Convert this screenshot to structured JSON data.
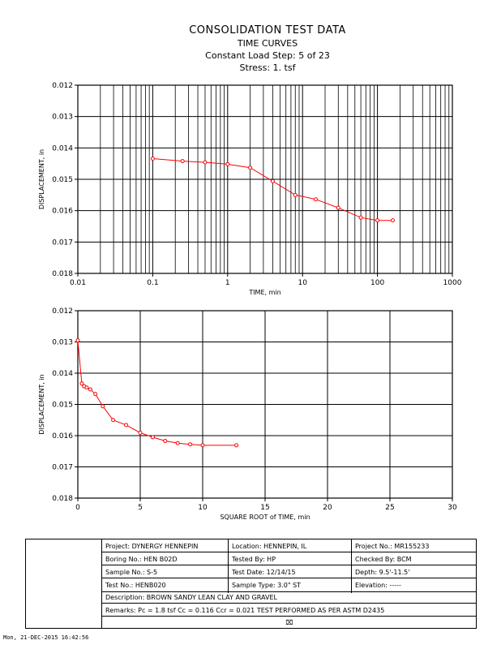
{
  "header": {
    "title": "CONSOLIDATION TEST DATA",
    "subtitle": "TIME CURVES",
    "load_step": "Constant Load Step: 5 of 23",
    "stress": "Stress: 1. tsf"
  },
  "chart_data": [
    {
      "type": "line",
      "name": "displacement-vs-log-time",
      "xlabel": "TIME, min",
      "ylabel": "DISPLACEMENT, in",
      "xscale": "log",
      "xlim": [
        0.01,
        1000
      ],
      "ylim": [
        0.012,
        0.018
      ],
      "y_inverted": true,
      "grid": true,
      "xticks": [
        0.01,
        0.1,
        1,
        10,
        100,
        1000
      ],
      "xtick_labels": [
        "0.01",
        "0.1",
        "1",
        "10",
        "100",
        "1000"
      ],
      "yticks": [
        0.012,
        0.013,
        0.014,
        0.015,
        0.016,
        0.017,
        0.018
      ],
      "ytick_labels": [
        "0.012",
        "0.013",
        "0.014",
        "0.015",
        "0.016",
        "0.017",
        "0.018"
      ],
      "color": "#ff0000",
      "x": [
        0.1,
        0.25,
        0.5,
        1,
        2,
        4,
        8,
        15,
        30,
        60,
        100,
        160
      ],
      "y": [
        0.01434,
        0.01442,
        0.01446,
        0.01452,
        0.01463,
        0.01506,
        0.0155,
        0.01564,
        0.01591,
        0.01622,
        0.01631,
        0.01631
      ]
    },
    {
      "type": "line",
      "name": "displacement-vs-root-time",
      "xlabel": "SQUARE ROOT of TIME, min",
      "ylabel": "DISPLACEMENT, in",
      "xlim": [
        0,
        30
      ],
      "ylim": [
        0.012,
        0.018
      ],
      "y_inverted": true,
      "grid": true,
      "xticks": [
        0,
        5,
        10,
        15,
        20,
        25,
        30
      ],
      "xtick_labels": [
        "0",
        "5",
        "10",
        "15",
        "20",
        "25",
        "30"
      ],
      "yticks": [
        0.012,
        0.013,
        0.014,
        0.015,
        0.016,
        0.017,
        0.018
      ],
      "ytick_labels": [
        "0.012",
        "0.013",
        "0.014",
        "0.015",
        "0.016",
        "0.017",
        "0.018"
      ],
      "color": "#ff0000",
      "x": [
        0,
        0.32,
        0.5,
        0.71,
        1.0,
        1.41,
        2.0,
        2.83,
        3.87,
        5.0,
        6.0,
        7.0,
        8.0,
        9.0,
        10.0,
        12.7
      ],
      "y": [
        0.01295,
        0.01433,
        0.01442,
        0.01446,
        0.01452,
        0.01467,
        0.01506,
        0.0155,
        0.01566,
        0.01591,
        0.01605,
        0.01617,
        0.01624,
        0.01628,
        0.01631,
        0.01631
      ]
    }
  ],
  "info": {
    "project": "Project: DYNERGY HENNEPIN",
    "location": "Location: HENNEPIN, IL",
    "project_no": "Project No.: MR155233",
    "boring_no": "Boring No.: HEN B02D",
    "tested_by": "Tested By: HP",
    "checked_by": "Checked By: BCM",
    "sample_no": "Sample No.: S-5",
    "test_date": "Test Date: 12/14/15",
    "depth": "Depth: 9.5'-11.5'",
    "test_no": "Test No.: HENB020",
    "sample_type": "Sample Type: 3.0\" ST",
    "elevation": "Elevation: -----",
    "description": "Description: BROWN SANDY LEAN CLAY AND GRAVEL",
    "remarks": "Remarks: Pc = 1.8 tsf Cc = 0.116 Ccr = 0.021 TEST PERFORMED AS PER ASTM D2435",
    "mark": "⌧"
  },
  "footer": {
    "timestamp": "Mon, 21-DEC-2015 16:42:56"
  }
}
